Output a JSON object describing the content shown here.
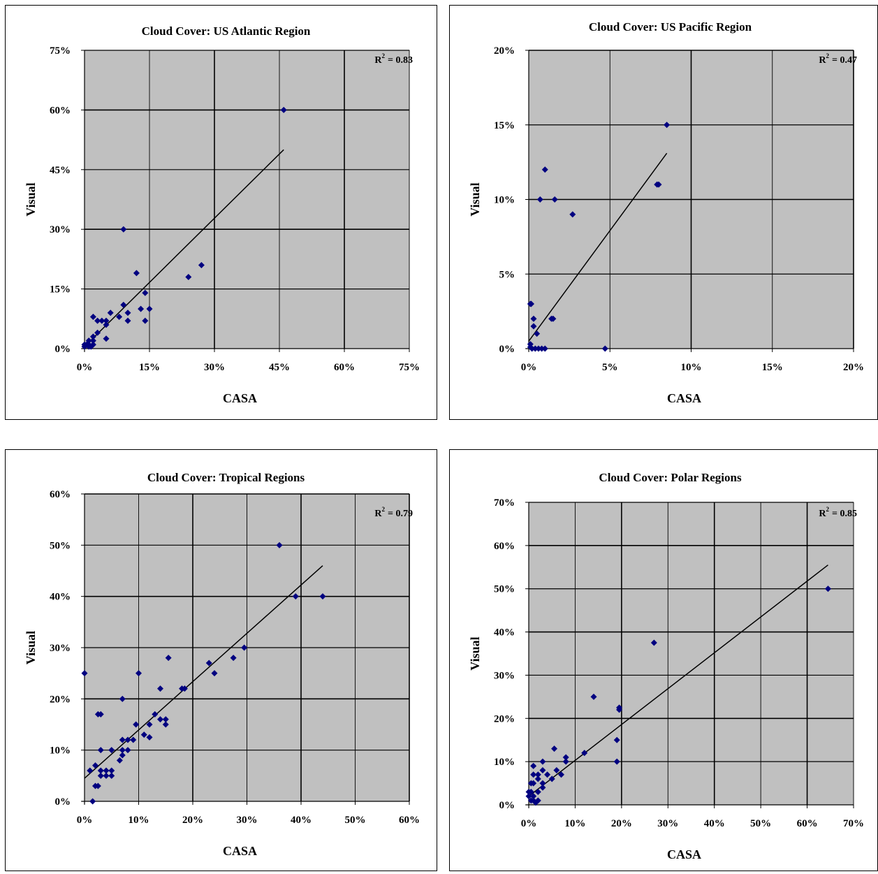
{
  "colors": {
    "plot_bg": "#c0c0c0",
    "grid": "#000000",
    "marker": "#000080",
    "trendline": "#000000"
  },
  "chart_data": [
    {
      "type": "scatter",
      "title": "Cloud Cover: US Atlantic Region",
      "r2_label": "R",
      "r2_exp": "2",
      "r2_value": "= 0.83",
      "xlabel": "CASA",
      "ylabel": "Visual",
      "xlim": [
        0,
        75
      ],
      "ylim": [
        0,
        75
      ],
      "x_ticks": [
        0,
        15,
        30,
        45,
        60,
        75
      ],
      "y_ticks": [
        0,
        15,
        30,
        45,
        60,
        75
      ],
      "x_tick_labels": [
        "0%",
        "15%",
        "30%",
        "45%",
        "60%",
        "75%"
      ],
      "y_tick_labels": [
        "0%",
        "15%",
        "30%",
        "45%",
        "60%",
        "75%"
      ],
      "grid": true,
      "marker": "diamond",
      "trendline": [
        [
          0,
          0.5
        ],
        [
          46,
          50
        ]
      ],
      "points": [
        [
          46,
          60
        ],
        [
          9,
          30
        ],
        [
          27,
          21
        ],
        [
          24,
          18
        ],
        [
          12,
          19
        ],
        [
          14,
          14
        ],
        [
          9,
          11
        ],
        [
          13,
          10
        ],
        [
          15,
          10
        ],
        [
          14,
          7
        ],
        [
          10,
          9
        ],
        [
          10,
          7
        ],
        [
          8,
          8
        ],
        [
          6,
          9
        ],
        [
          5,
          7
        ],
        [
          5,
          6
        ],
        [
          3,
          7
        ],
        [
          4,
          7
        ],
        [
          5,
          2.5
        ],
        [
          2,
          8
        ],
        [
          3,
          4
        ],
        [
          2,
          3
        ],
        [
          2,
          2
        ],
        [
          1,
          2
        ],
        [
          1,
          1
        ],
        [
          1,
          0.5
        ],
        [
          0.5,
          1
        ],
        [
          0,
          1
        ],
        [
          0,
          0.5
        ],
        [
          2,
          1
        ],
        [
          1.5,
          0.5
        ]
      ]
    },
    {
      "type": "scatter",
      "title": "Cloud Cover: US Pacific Region",
      "r2_label": "R",
      "r2_exp": "2",
      "r2_value": "= 0.47",
      "xlabel": "CASA",
      "ylabel": "Visual",
      "xlim": [
        0,
        20
      ],
      "ylim": [
        0,
        20
      ],
      "x_ticks": [
        0,
        5,
        10,
        15,
        20
      ],
      "y_ticks": [
        0,
        5,
        10,
        15,
        20
      ],
      "x_tick_labels": [
        "0%",
        "5%",
        "10%",
        "15%",
        "20%"
      ],
      "y_tick_labels": [
        "0%",
        "5%",
        "10%",
        "15%",
        "20%"
      ],
      "grid": true,
      "marker": "diamond",
      "trendline": [
        [
          0,
          0.5
        ],
        [
          8.5,
          13.1
        ]
      ],
      "points": [
        [
          8.5,
          15
        ],
        [
          7.9,
          11
        ],
        [
          8,
          11
        ],
        [
          1,
          12
        ],
        [
          0.7,
          10
        ],
        [
          1.6,
          10
        ],
        [
          2.7,
          9
        ],
        [
          1.4,
          2
        ],
        [
          1.5,
          2
        ],
        [
          0.1,
          3
        ],
        [
          0.15,
          3
        ],
        [
          0.3,
          2
        ],
        [
          0.3,
          1.5
        ],
        [
          0.5,
          1
        ],
        [
          4.7,
          0
        ],
        [
          0.1,
          0.3
        ],
        [
          0.2,
          0
        ],
        [
          0.4,
          0
        ],
        [
          0.6,
          0
        ],
        [
          0.8,
          0
        ],
        [
          1.0,
          0
        ],
        [
          0.1,
          0.1
        ]
      ]
    },
    {
      "type": "scatter",
      "title": "Cloud Cover: Tropical Regions",
      "r2_label": "R",
      "r2_exp": "2",
      "r2_value": "= 0.79",
      "xlabel": "CASA",
      "ylabel": "Visual",
      "xlim": [
        0,
        60
      ],
      "ylim": [
        0,
        60
      ],
      "x_ticks": [
        0,
        10,
        20,
        30,
        40,
        50,
        60
      ],
      "y_ticks": [
        0,
        10,
        20,
        30,
        40,
        50,
        60
      ],
      "x_tick_labels": [
        "0%",
        "10%",
        "20%",
        "30%",
        "40%",
        "50%",
        "60%"
      ],
      "y_tick_labels": [
        "0%",
        "10%",
        "20%",
        "30%",
        "40%",
        "50%",
        "60%"
      ],
      "grid": true,
      "marker": "diamond",
      "trendline": [
        [
          0,
          4.5
        ],
        [
          44,
          46
        ]
      ],
      "points": [
        [
          36,
          50
        ],
        [
          39,
          40
        ],
        [
          44,
          40
        ],
        [
          29.5,
          30
        ],
        [
          27.5,
          28
        ],
        [
          23,
          27
        ],
        [
          24,
          25
        ],
        [
          18,
          22
        ],
        [
          18.5,
          22
        ],
        [
          15.5,
          28
        ],
        [
          14,
          22
        ],
        [
          13,
          17
        ],
        [
          14,
          16
        ],
        [
          15,
          16
        ],
        [
          15,
          15
        ],
        [
          12,
          15
        ],
        [
          11,
          13
        ],
        [
          12,
          12.5
        ],
        [
          10,
          25
        ],
        [
          0,
          25
        ],
        [
          7,
          20
        ],
        [
          9.5,
          15
        ],
        [
          8,
          12
        ],
        [
          9,
          12
        ],
        [
          7,
          12
        ],
        [
          7,
          10
        ],
        [
          8,
          10
        ],
        [
          7,
          9
        ],
        [
          6.5,
          8
        ],
        [
          3,
          17
        ],
        [
          2.5,
          17
        ],
        [
          5,
          10
        ],
        [
          3,
          10
        ],
        [
          4,
          6
        ],
        [
          5,
          6
        ],
        [
          4,
          5
        ],
        [
          5,
          5
        ],
        [
          3,
          5
        ],
        [
          3,
          6
        ],
        [
          2.5,
          3
        ],
        [
          2,
          3
        ],
        [
          2,
          7
        ],
        [
          1,
          6
        ],
        [
          1.5,
          0
        ]
      ]
    },
    {
      "type": "scatter",
      "title": "Cloud Cover: Polar Regions",
      "r2_label": "R",
      "r2_exp": "2",
      "r2_value": "= 0.85",
      "xlabel": "CASA",
      "ylabel": "Visual",
      "xlim": [
        0,
        70
      ],
      "ylim": [
        0,
        70
      ],
      "x_ticks": [
        0,
        10,
        20,
        30,
        40,
        50,
        60,
        70
      ],
      "y_ticks": [
        0,
        10,
        20,
        30,
        40,
        50,
        60,
        70
      ],
      "x_tick_labels": [
        "0%",
        "10%",
        "20%",
        "30%",
        "40%",
        "50%",
        "60%",
        "70%"
      ],
      "y_tick_labels": [
        "0%",
        "10%",
        "20%",
        "30%",
        "40%",
        "50%",
        "60%",
        "70%"
      ],
      "grid": true,
      "marker": "diamond",
      "trendline": [
        [
          0,
          2
        ],
        [
          64.5,
          55.5
        ]
      ],
      "points": [
        [
          64.5,
          50
        ],
        [
          27,
          37.5
        ],
        [
          14,
          25
        ],
        [
          19.5,
          22
        ],
        [
          19.5,
          22.5
        ],
        [
          19,
          15
        ],
        [
          19,
          10
        ],
        [
          12,
          12
        ],
        [
          8,
          11
        ],
        [
          8,
          10
        ],
        [
          5.5,
          13
        ],
        [
          7,
          7
        ],
        [
          5,
          6
        ],
        [
          4,
          7
        ],
        [
          3,
          10
        ],
        [
          3,
          8
        ],
        [
          2,
          7
        ],
        [
          2,
          6
        ],
        [
          1,
          9
        ],
        [
          1,
          7
        ],
        [
          1,
          5
        ],
        [
          0.5,
          5
        ],
        [
          0.5,
          3
        ],
        [
          0,
          2
        ],
        [
          0,
          3
        ],
        [
          1,
          2
        ],
        [
          2,
          3
        ],
        [
          3,
          4
        ],
        [
          2,
          1
        ],
        [
          1,
          1
        ],
        [
          1.5,
          0.5
        ],
        [
          0.5,
          1
        ],
        [
          3,
          5
        ],
        [
          6,
          8
        ]
      ]
    }
  ]
}
